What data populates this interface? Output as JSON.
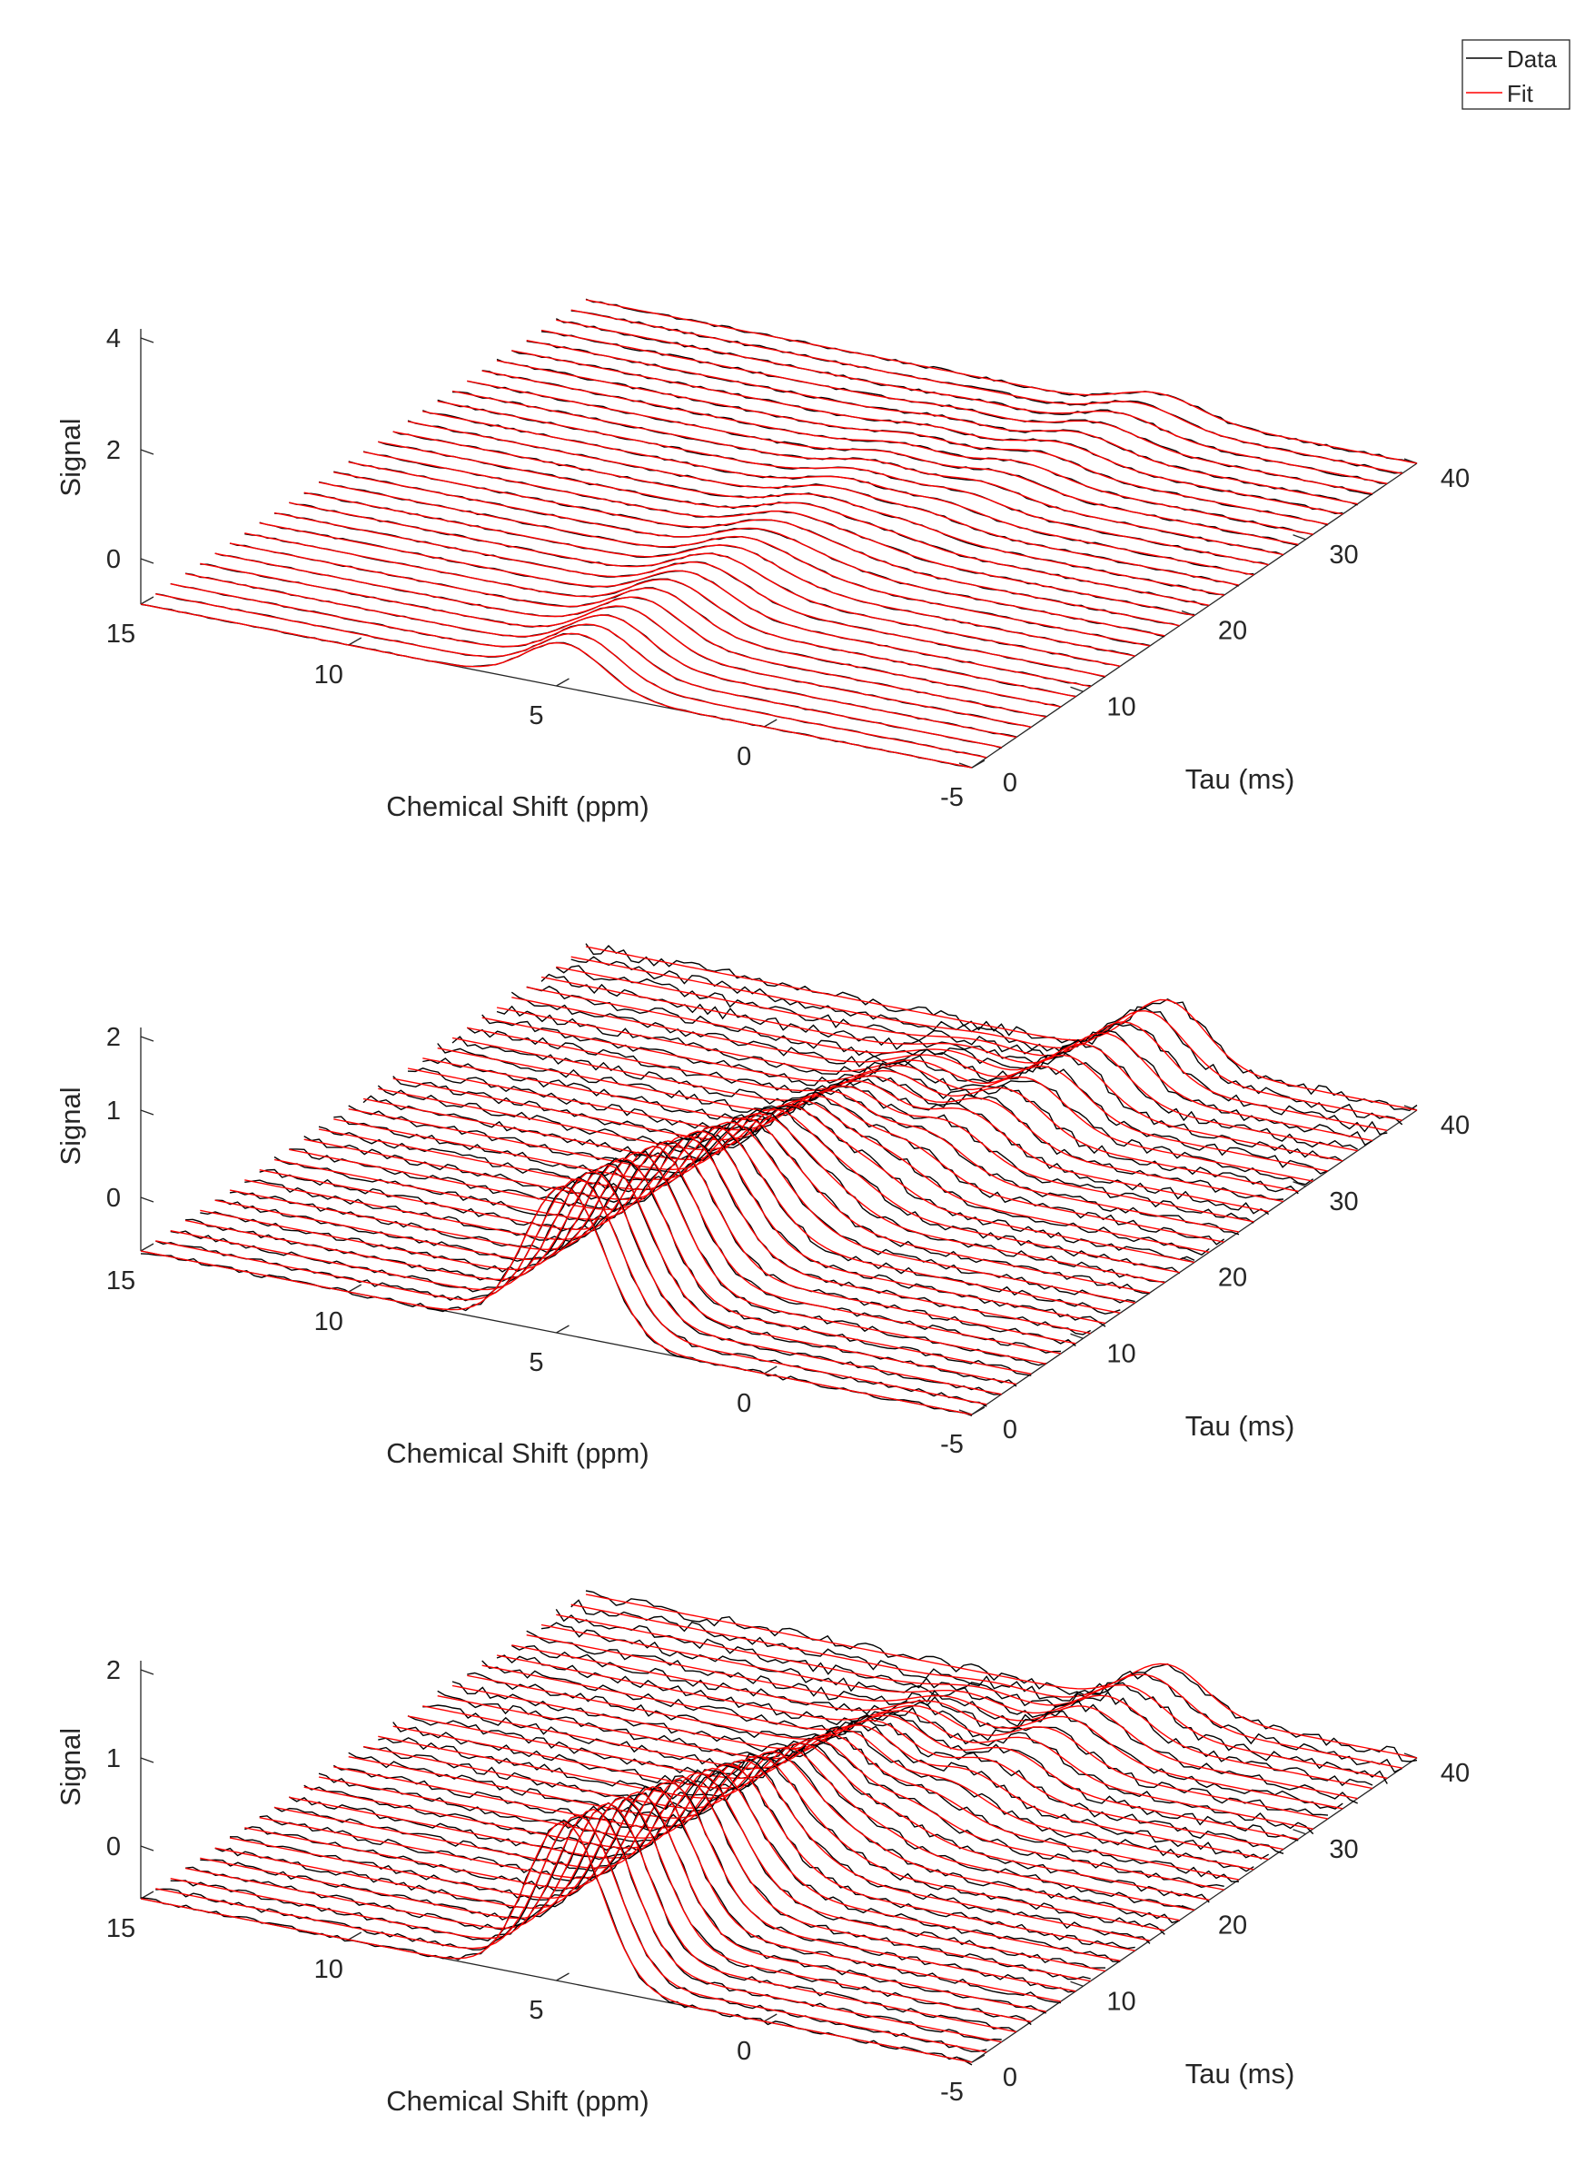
{
  "legend": {
    "items": [
      {
        "label": "Data",
        "color": "#000000"
      },
      {
        "label": "Fit",
        "color": "#ff0000"
      }
    ],
    "placement": "top-right"
  },
  "chart_data": [
    {
      "type": "line",
      "title": "",
      "xlabel": "Chemical Shift (ppm)",
      "ylabel": "Tau (ms)",
      "zlabel": "Signal",
      "xlim": [
        -5,
        15
      ],
      "ylim": [
        0,
        40
      ],
      "zlim": [
        0,
        4
      ],
      "xticks": [
        "15",
        "10",
        "5",
        "0",
        "-5"
      ],
      "yticks": [
        "0",
        "10",
        "20",
        "30",
        "40"
      ],
      "zticks": [
        "0",
        "2",
        "4"
      ],
      "grid": false,
      "traces": {
        "count": 31,
        "tau_start": 0,
        "tau_end": 40
      },
      "series": [
        {
          "name": "Data",
          "color": "#000000"
        },
        {
          "name": "Fit",
          "color": "#ff0000"
        }
      ],
      "peaks": [
        {
          "center_start_ppm": 4.8,
          "center_end_ppm": 4.8,
          "width_ppm": 0.95,
          "amplitude_start": 1.6,
          "amplitude_end": 0.0
        },
        {
          "center_start_ppm": 4.8,
          "center_end_ppm": 1.2,
          "width_ppm": 0.95,
          "amplitude_start": 0.0,
          "amplitude_end": 0.7
        }
      ],
      "noise_level": 0.04
    },
    {
      "type": "line",
      "title": "",
      "xlabel": "Chemical Shift (ppm)",
      "ylabel": "Tau (ms)",
      "zlabel": "Signal",
      "xlim": [
        -5,
        15
      ],
      "ylim": [
        0,
        40
      ],
      "zlim": [
        0,
        2.5
      ],
      "xticks": [
        "15",
        "10",
        "5",
        "0",
        "-5"
      ],
      "yticks": [
        "0",
        "10",
        "20",
        "30",
        "40"
      ],
      "zticks": [
        "0",
        "1",
        "2"
      ],
      "grid": false,
      "traces": {
        "count": 31,
        "tau_start": 0,
        "tau_end": 40
      },
      "series": [
        {
          "name": "Data",
          "color": "#000000"
        },
        {
          "name": "Fit",
          "color": "#ff0000"
        }
      ],
      "peaks": [
        {
          "center_start_ppm": 4.8,
          "center_end_ppm": 4.8,
          "width_ppm": 0.95,
          "amplitude_start": 1.7,
          "amplitude_end": 0.0
        },
        {
          "center_start_ppm": 4.8,
          "center_end_ppm": 1.0,
          "width_ppm": 0.9,
          "amplitude_start": 0.0,
          "amplitude_end": 0.7
        }
      ],
      "noise_level": 0.05
    },
    {
      "type": "line",
      "title": "",
      "xlabel": "Chemical Shift (ppm)",
      "ylabel": "Tau (ms)",
      "zlabel": "Signal",
      "xlim": [
        -5,
        15
      ],
      "ylim": [
        0,
        40
      ],
      "zlim": [
        0,
        2.5
      ],
      "xticks": [
        "15",
        "10",
        "5",
        "0",
        "-5"
      ],
      "yticks": [
        "0",
        "10",
        "20",
        "30",
        "40"
      ],
      "zticks": [
        "0",
        "1",
        "2"
      ],
      "grid": false,
      "traces": {
        "count": 31,
        "tau_start": 0,
        "tau_end": 40
      },
      "series": [
        {
          "name": "Data",
          "color": "#000000"
        },
        {
          "name": "Fit",
          "color": "#ff0000"
        }
      ],
      "peaks": [
        {
          "center_start_ppm": 4.8,
          "center_end_ppm": 4.8,
          "width_ppm": 0.9,
          "amplitude_start": 1.8,
          "amplitude_end": 0.0
        },
        {
          "center_start_ppm": 4.8,
          "center_end_ppm": 1.0,
          "width_ppm": 0.9,
          "amplitude_start": 0.0,
          "amplitude_end": 0.5
        }
      ],
      "noise_level": 0.05
    }
  ]
}
